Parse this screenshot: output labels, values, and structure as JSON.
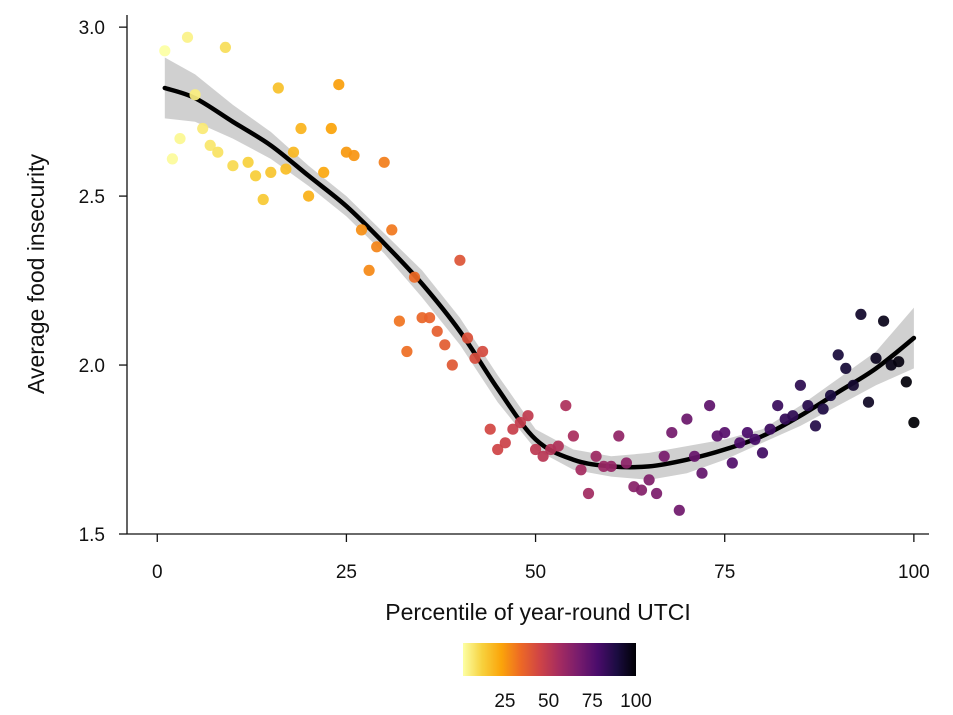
{
  "chart_data": {
    "type": "scatter",
    "xlabel": "Percentile of year-round UTCI",
    "ylabel": "Average food insecurity",
    "xlim": [
      -4,
      102
    ],
    "ylim": [
      1.5,
      3.03
    ],
    "x_ticks": [
      0,
      25,
      50,
      75,
      100
    ],
    "x_tick_labels": [
      "0",
      "25",
      "50",
      "75",
      "100"
    ],
    "y_ticks": [
      1.5,
      2.0,
      2.5,
      3.0
    ],
    "y_tick_labels": [
      "1.5",
      "2.0",
      "2.5",
      "3.0"
    ],
    "grid": false,
    "colormap": {
      "name": "inferno",
      "stops": [
        "#fcffa4",
        "#f7d13d",
        "#fba40a",
        "#ed6925",
        "#cf4446",
        "#a52c60",
        "#781c6d",
        "#4a0c6b",
        "#1b0c41",
        "#000004"
      ],
      "range": [
        1,
        100
      ],
      "tick_values": [
        25,
        50,
        75,
        100
      ],
      "tick_labels": [
        "25",
        "50",
        "75",
        "100"
      ]
    },
    "points": [
      {
        "x": 1,
        "y": 2.93
      },
      {
        "x": 2,
        "y": 2.61
      },
      {
        "x": 3,
        "y": 2.67
      },
      {
        "x": 4,
        "y": 2.97
      },
      {
        "x": 5,
        "y": 2.8
      },
      {
        "x": 6,
        "y": 2.7
      },
      {
        "x": 7,
        "y": 2.65
      },
      {
        "x": 8,
        "y": 2.63
      },
      {
        "x": 9,
        "y": 2.94
      },
      {
        "x": 10,
        "y": 2.59
      },
      {
        "x": 12,
        "y": 2.6
      },
      {
        "x": 13,
        "y": 2.56
      },
      {
        "x": 14,
        "y": 2.49
      },
      {
        "x": 15,
        "y": 2.57
      },
      {
        "x": 16,
        "y": 2.82
      },
      {
        "x": 17,
        "y": 2.58
      },
      {
        "x": 18,
        "y": 2.63
      },
      {
        "x": 19,
        "y": 2.7
      },
      {
        "x": 20,
        "y": 2.5
      },
      {
        "x": 22,
        "y": 2.57
      },
      {
        "x": 23,
        "y": 2.7
      },
      {
        "x": 24,
        "y": 2.83
      },
      {
        "x": 25,
        "y": 2.63
      },
      {
        "x": 26,
        "y": 2.62
      },
      {
        "x": 27,
        "y": 2.4
      },
      {
        "x": 28,
        "y": 2.28
      },
      {
        "x": 29,
        "y": 2.35
      },
      {
        "x": 30,
        "y": 2.6
      },
      {
        "x": 31,
        "y": 2.4
      },
      {
        "x": 32,
        "y": 2.13
      },
      {
        "x": 33,
        "y": 2.04
      },
      {
        "x": 34,
        "y": 2.26
      },
      {
        "x": 35,
        "y": 2.14
      },
      {
        "x": 36,
        "y": 2.14
      },
      {
        "x": 37,
        "y": 2.1
      },
      {
        "x": 38,
        "y": 2.06
      },
      {
        "x": 39,
        "y": 2.0
      },
      {
        "x": 40,
        "y": 2.31
      },
      {
        "x": 41,
        "y": 2.08
      },
      {
        "x": 42,
        "y": 2.02
      },
      {
        "x": 43,
        "y": 2.04
      },
      {
        "x": 44,
        "y": 1.81
      },
      {
        "x": 45,
        "y": 1.75
      },
      {
        "x": 46,
        "y": 1.77
      },
      {
        "x": 47,
        "y": 1.81
      },
      {
        "x": 48,
        "y": 1.83
      },
      {
        "x": 49,
        "y": 1.85
      },
      {
        "x": 50,
        "y": 1.75
      },
      {
        "x": 51,
        "y": 1.73
      },
      {
        "x": 52,
        "y": 1.75
      },
      {
        "x": 53,
        "y": 1.76
      },
      {
        "x": 54,
        "y": 1.88
      },
      {
        "x": 55,
        "y": 1.79
      },
      {
        "x": 56,
        "y": 1.69
      },
      {
        "x": 57,
        "y": 1.62
      },
      {
        "x": 58,
        "y": 1.73
      },
      {
        "x": 59,
        "y": 1.7
      },
      {
        "x": 60,
        "y": 1.7
      },
      {
        "x": 61,
        "y": 1.79
      },
      {
        "x": 62,
        "y": 1.71
      },
      {
        "x": 63,
        "y": 1.64
      },
      {
        "x": 64,
        "y": 1.63
      },
      {
        "x": 65,
        "y": 1.66
      },
      {
        "x": 66,
        "y": 1.62
      },
      {
        "x": 67,
        "y": 1.73
      },
      {
        "x": 68,
        "y": 1.8
      },
      {
        "x": 69,
        "y": 1.57
      },
      {
        "x": 70,
        "y": 1.84
      },
      {
        "x": 71,
        "y": 1.73
      },
      {
        "x": 72,
        "y": 1.68
      },
      {
        "x": 73,
        "y": 1.88
      },
      {
        "x": 74,
        "y": 1.79
      },
      {
        "x": 75,
        "y": 1.8
      },
      {
        "x": 76,
        "y": 1.71
      },
      {
        "x": 77,
        "y": 1.77
      },
      {
        "x": 78,
        "y": 1.8
      },
      {
        "x": 79,
        "y": 1.78
      },
      {
        "x": 80,
        "y": 1.74
      },
      {
        "x": 81,
        "y": 1.81
      },
      {
        "x": 82,
        "y": 1.88
      },
      {
        "x": 83,
        "y": 1.84
      },
      {
        "x": 84,
        "y": 1.85
      },
      {
        "x": 85,
        "y": 1.94
      },
      {
        "x": 86,
        "y": 1.88
      },
      {
        "x": 87,
        "y": 1.82
      },
      {
        "x": 88,
        "y": 1.87
      },
      {
        "x": 89,
        "y": 1.91
      },
      {
        "x": 90,
        "y": 2.03
      },
      {
        "x": 91,
        "y": 1.99
      },
      {
        "x": 92,
        "y": 1.94
      },
      {
        "x": 93,
        "y": 2.15
      },
      {
        "x": 94,
        "y": 1.89
      },
      {
        "x": 95,
        "y": 2.02
      },
      {
        "x": 96,
        "y": 2.13
      },
      {
        "x": 97,
        "y": 2.0
      },
      {
        "x": 98,
        "y": 2.01
      },
      {
        "x": 99,
        "y": 1.95
      },
      {
        "x": 100,
        "y": 1.83
      }
    ],
    "fit": {
      "style": "smoothed trend with confidence band",
      "line_color": "#000000",
      "band_color": "#c8c8c8",
      "x": [
        1,
        5,
        10,
        15,
        20,
        25,
        30,
        35,
        40,
        45,
        50,
        55,
        60,
        65,
        70,
        75,
        80,
        85,
        90,
        95,
        100
      ],
      "y": [
        2.82,
        2.79,
        2.72,
        2.65,
        2.56,
        2.47,
        2.36,
        2.24,
        2.1,
        1.93,
        1.78,
        1.72,
        1.7,
        1.7,
        1.72,
        1.75,
        1.79,
        1.85,
        1.92,
        1.99,
        2.08
      ],
      "lower": [
        2.73,
        2.72,
        2.67,
        2.61,
        2.53,
        2.44,
        2.33,
        2.2,
        2.06,
        1.89,
        1.75,
        1.69,
        1.67,
        1.66,
        1.68,
        1.72,
        1.77,
        1.82,
        1.88,
        1.94,
        1.99
      ],
      "upper": [
        2.91,
        2.86,
        2.77,
        2.69,
        2.59,
        2.5,
        2.39,
        2.28,
        2.14,
        1.97,
        1.81,
        1.75,
        1.73,
        1.74,
        1.76,
        1.78,
        1.81,
        1.88,
        1.96,
        2.04,
        2.17
      ]
    }
  }
}
